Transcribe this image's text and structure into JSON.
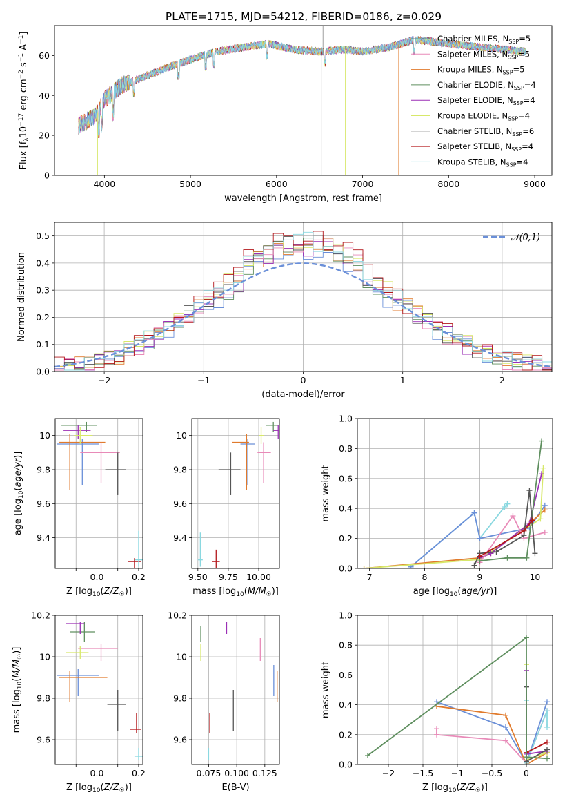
{
  "title": "PLATE=1715, MJD=54212, FIBERID=0186, z=0.029",
  "colors": [
    "#6a8fd8",
    "#e07a2c",
    "#5f8f5f",
    "#9b2fb5",
    "#e88ab8",
    "#d7e86a",
    "#555555",
    "#b3171b",
    "#8ad8e0"
  ],
  "chart_data": [
    {
      "id": "spectrum",
      "type": "line",
      "xlabel": "wavelength [Angstrom, rest frame]",
      "ylabel": "Flux [f_λ10^-17 erg cm^-2 s^-1 A^-1]",
      "xlim": [
        3420,
        9200
      ],
      "ylim": [
        0,
        75
      ],
      "xticks": [
        4000,
        5000,
        6000,
        7000,
        8000,
        9000
      ],
      "yticks": [
        0,
        20,
        40,
        60
      ],
      "grid": false,
      "legend_position": "right",
      "legend": [
        "Chabrier MILES, N_SSP=5",
        "Salpeter MILES, N_SSP=5",
        "Kroupa MILES, N_SSP=5",
        "Chabrier ELODIE, N_SSP=4",
        "Salpeter ELODIE, N_SSP=4",
        "Kroupa ELODIE, N_SSP=4",
        "Chabrier STELIB, N_SSP=6",
        "Salpeter STELIB, N_SSP=4",
        "Kroupa STELIB, N_SSP=4"
      ],
      "legend_colors": [
        "#5c9090",
        "#e88ab8",
        "#e07a2c",
        "#5f8f5f",
        "#9b2fb5",
        "#d7e86a",
        "#555555",
        "#b3171b",
        "#8ad8e0"
      ],
      "continuum": [
        [
          3700,
          25
        ],
        [
          3900,
          30
        ],
        [
          4000,
          38
        ],
        [
          4200,
          45
        ],
        [
          4500,
          50
        ],
        [
          4800,
          55
        ],
        [
          5000,
          58
        ],
        [
          5300,
          62
        ],
        [
          5600,
          64
        ],
        [
          5900,
          66
        ],
        [
          6200,
          63
        ],
        [
          6500,
          62
        ],
        [
          6800,
          63
        ],
        [
          7000,
          62
        ],
        [
          7300,
          64
        ],
        [
          7600,
          68
        ],
        [
          8000,
          66
        ],
        [
          8400,
          64
        ],
        [
          8900,
          62
        ]
      ],
      "dropouts": [
        {
          "x": 3920,
          "color": "#d7e86a"
        },
        {
          "x": 6800,
          "color": "#d7e86a"
        },
        {
          "x": 7420,
          "color": "#e07a2c"
        }
      ]
    },
    {
      "id": "residuals",
      "type": "histogram",
      "xlabel": "(data-model)/error",
      "ylabel": "Normed distribution",
      "xlim": [
        -2.5,
        2.5
      ],
      "ylim": [
        0,
        0.55
      ],
      "xticks": [
        -2,
        -1,
        0,
        1,
        2
      ],
      "yticks": [
        0.0,
        0.1,
        0.2,
        0.3,
        0.4,
        0.5
      ],
      "grid": true,
      "legend_position": "top-right",
      "legend": [
        "𝒩(0,1)"
      ],
      "bin_width": 0.1,
      "curve": {
        "mean": 0,
        "sigma": 1,
        "color": "#6a8fd8"
      }
    },
    {
      "id": "age_vs_Z",
      "type": "scatter",
      "xlabel": "Z [log10(Z/Z☉)]",
      "ylabel": "age [log10(age/yr)]",
      "xlim": [
        -0.2,
        0.22
      ],
      "ylim": [
        9.22,
        10.1
      ],
      "xticks": [
        -0.1,
        0.0,
        0.1,
        0.2
      ],
      "xticklabels": [
        "",
        "0.0",
        "",
        "0.2"
      ],
      "yticks": [
        9.4,
        9.6,
        9.8,
        10.0
      ],
      "grid": true,
      "points": [
        {
          "x": -0.07,
          "y": 9.95,
          "xerr": [
            0.12,
            0.08
          ],
          "yerr": [
            0.24,
            0.03
          ],
          "c": 0
        },
        {
          "x": -0.13,
          "y": 9.96,
          "xerr": [
            0.05,
            0.17
          ],
          "yerr": [
            0.28,
            0.05
          ],
          "c": 1
        },
        {
          "x": -0.05,
          "y": 10.06,
          "xerr": [
            0.12,
            0.05
          ],
          "yerr": [
            0.04,
            0.02
          ],
          "c": 2
        },
        {
          "x": -0.09,
          "y": 10.03,
          "xerr": [
            0.07,
            0.06
          ],
          "yerr": [
            0.05,
            0.03
          ],
          "c": 3
        },
        {
          "x": 0.02,
          "y": 9.9,
          "xerr": [
            0.1,
            0.09
          ],
          "yerr": [
            0.18,
            0.06
          ],
          "c": 4
        },
        {
          "x": -0.08,
          "y": 10.0,
          "xerr": [
            0.03,
            0.06
          ],
          "yerr": [
            0.05,
            0.05
          ],
          "c": 5
        },
        {
          "x": 0.1,
          "y": 9.8,
          "xerr": [
            0.06,
            0.04
          ],
          "yerr": [
            0.15,
            0.1
          ],
          "c": 6
        },
        {
          "x": 0.18,
          "y": 9.26,
          "xerr": [
            0.03,
            0.03
          ],
          "yerr": [
            0.04,
            0.02
          ],
          "c": 7
        },
        {
          "x": 0.2,
          "y": 9.27,
          "xerr": [
            0.02,
            0.02
          ],
          "yerr": [
            0.04,
            0.17
          ],
          "c": 8
        }
      ]
    },
    {
      "id": "age_vs_mass",
      "type": "scatter",
      "xlabel": "mass [log10(M/M☉)]",
      "ylabel": "",
      "xlim": [
        9.45,
        10.17
      ],
      "ylim": [
        9.22,
        10.1
      ],
      "xticks": [
        9.5,
        9.75,
        10.0
      ],
      "xticklabels": [
        "9.50",
        "9.75",
        "10.00"
      ],
      "yticks": [
        9.4,
        9.6,
        9.8,
        10.0
      ],
      "grid": true,
      "points": [
        {
          "x": 9.91,
          "y": 9.95,
          "xerr": [
            0.06,
            0.06
          ],
          "yerr": [
            0.24,
            0.03
          ],
          "c": 0
        },
        {
          "x": 9.9,
          "y": 9.96,
          "xerr": [
            0.12,
            0.02
          ],
          "yerr": [
            0.28,
            0.05
          ],
          "c": 1
        },
        {
          "x": 10.12,
          "y": 10.06,
          "xerr": [
            0.06,
            0.04
          ],
          "yerr": [
            0.04,
            0.02
          ],
          "c": 2
        },
        {
          "x": 10.16,
          "y": 10.03,
          "xerr": [
            0.04,
            0.04
          ],
          "yerr": [
            0.05,
            0.03
          ],
          "c": 3
        },
        {
          "x": 10.04,
          "y": 9.9,
          "xerr": [
            0.05,
            0.06
          ],
          "yerr": [
            0.18,
            0.06
          ],
          "c": 4
        },
        {
          "x": 10.02,
          "y": 10.0,
          "xerr": [
            0.02,
            0.02
          ],
          "yerr": [
            0.05,
            0.05
          ],
          "c": 5
        },
        {
          "x": 9.77,
          "y": 9.8,
          "xerr": [
            0.1,
            0.08
          ],
          "yerr": [
            0.15,
            0.1
          ],
          "c": 6
        },
        {
          "x": 9.65,
          "y": 9.26,
          "xerr": [
            0.03,
            0.03
          ],
          "yerr": [
            0.04,
            0.07
          ],
          "c": 7
        },
        {
          "x": 9.52,
          "y": 9.27,
          "xerr": [
            0.02,
            0.02
          ],
          "yerr": [
            0.04,
            0.16
          ],
          "c": 8
        }
      ]
    },
    {
      "id": "weight_vs_age",
      "type": "line",
      "xlabel": "age [log10(age/yr)]",
      "ylabel": "mass weight",
      "xlim": [
        6.78,
        10.32
      ],
      "ylim": [
        0,
        1.0
      ],
      "xticks": [
        7,
        8,
        9,
        10
      ],
      "yticks": [
        0.0,
        0.2,
        0.4,
        0.6,
        0.8,
        1.0
      ],
      "grid": true,
      "series": [
        {
          "c": 8,
          "x": [
            7.75,
            8.9,
            9.0,
            9.45,
            9.5
          ],
          "y": [
            0.01,
            0.37,
            0.2,
            0.41,
            0.43
          ]
        },
        {
          "c": 0,
          "x": [
            7.75,
            8.9,
            9.0,
            9.9,
            10.18
          ],
          "y": [
            0.01,
            0.37,
            0.2,
            0.27,
            0.42
          ]
        },
        {
          "c": 1,
          "x": [
            6.9,
            9.0,
            9.2,
            9.9,
            10.18
          ],
          "y": [
            0.0,
            0.07,
            0.1,
            0.3,
            0.39
          ]
        },
        {
          "c": 5,
          "x": [
            6.9,
            9.0,
            9.2,
            10.1,
            10.15
          ],
          "y": [
            0.0,
            0.06,
            0.11,
            0.33,
            0.67
          ]
        },
        {
          "c": 3,
          "x": [
            9.0,
            9.2,
            9.9,
            10.12
          ],
          "y": [
            0.07,
            0.1,
            0.3,
            0.63
          ]
        },
        {
          "c": 4,
          "x": [
            9.0,
            9.6,
            9.8,
            10.18
          ],
          "y": [
            0.04,
            0.35,
            0.2,
            0.24
          ]
        },
        {
          "c": 2,
          "x": [
            9.0,
            9.5,
            9.85,
            10.12
          ],
          "y": [
            0.05,
            0.07,
            0.07,
            0.85
          ]
        },
        {
          "c": 6,
          "x": [
            8.9,
            9.0,
            9.3,
            9.8,
            9.9,
            10.0
          ],
          "y": [
            0.02,
            0.1,
            0.11,
            0.22,
            0.52,
            0.1
          ]
        },
        {
          "c": 7,
          "x": [
            9.0,
            9.8,
            9.95
          ],
          "y": [
            0.08,
            0.25,
            0.32
          ]
        }
      ]
    },
    {
      "id": "mass_vs_Z",
      "type": "scatter",
      "xlabel": "Z [log10(Z/Z☉)]",
      "ylabel": "mass [log10(M/M☉)]",
      "xlim": [
        -0.2,
        0.22
      ],
      "ylim": [
        9.48,
        10.2
      ],
      "xticks": [
        -0.1,
        0.0,
        0.1,
        0.2
      ],
      "xticklabels": [
        "",
        "0.0",
        "",
        "0.2"
      ],
      "yticks": [
        9.6,
        9.8,
        10.0,
        10.2
      ],
      "grid": true,
      "points": [
        {
          "x": -0.09,
          "y": 9.91,
          "xerr": [
            0.1,
            0.1
          ],
          "yerr": [
            0.1,
            0.03
          ],
          "c": 0
        },
        {
          "x": -0.13,
          "y": 9.9,
          "xerr": [
            0.05,
            0.18
          ],
          "yerr": [
            0.12,
            0.03
          ],
          "c": 1
        },
        {
          "x": -0.06,
          "y": 10.12,
          "xerr": [
            0.07,
            0.05
          ],
          "yerr": [
            0.05,
            0.05
          ],
          "c": 2
        },
        {
          "x": -0.08,
          "y": 10.16,
          "xerr": [
            0.07,
            0.02
          ],
          "yerr": [
            0.05,
            0.01
          ],
          "c": 3
        },
        {
          "x": 0.02,
          "y": 10.04,
          "xerr": [
            0.11,
            0.08
          ],
          "yerr": [
            0.06,
            0.02
          ],
          "c": 4
        },
        {
          "x": -0.08,
          "y": 10.02,
          "xerr": [
            0.07,
            0.04
          ],
          "yerr": [
            0.03,
            0.03
          ],
          "c": 5
        },
        {
          "x": 0.1,
          "y": 9.77,
          "xerr": [
            0.05,
            0.04
          ],
          "yerr": [
            0.13,
            0.07
          ],
          "c": 6
        },
        {
          "x": 0.19,
          "y": 9.65,
          "xerr": [
            0.03,
            0.02
          ],
          "yerr": [
            0.02,
            0.08
          ],
          "c": 7
        },
        {
          "x": 0.2,
          "y": 9.52,
          "xerr": [
            0.02,
            0.02
          ],
          "yerr": [
            0.02,
            0.04
          ],
          "c": 8
        }
      ]
    },
    {
      "id": "mass_vs_ebv",
      "type": "scatter",
      "xlabel": "E(B-V)",
      "ylabel": "",
      "xlim": [
        0.06,
        0.138
      ],
      "ylim": [
        9.48,
        10.2
      ],
      "xticks": [
        0.075,
        0.1,
        0.125
      ],
      "xticklabels": [
        "0.075",
        "0.100",
        "0.125"
      ],
      "yticks": [
        9.6,
        9.8,
        10.0,
        10.2
      ],
      "grid": true,
      "points": [
        {
          "x": 0.133,
          "y": 9.91,
          "yerr": [
            0.1,
            0.05
          ],
          "c": 0
        },
        {
          "x": 0.136,
          "y": 9.9,
          "yerr": [
            0.12,
            0.03
          ],
          "c": 1
        },
        {
          "x": 0.068,
          "y": 10.12,
          "yerr": [
            0.05,
            0.03
          ],
          "c": 2
        },
        {
          "x": 0.091,
          "y": 10.16,
          "yerr": [
            0.05,
            0.01
          ],
          "c": 3
        },
        {
          "x": 0.121,
          "y": 10.04,
          "yerr": [
            0.06,
            0.05
          ],
          "c": 4
        },
        {
          "x": 0.068,
          "y": 10.02,
          "yerr": [
            0.04,
            0.04
          ],
          "c": 5
        },
        {
          "x": 0.097,
          "y": 9.77,
          "yerr": [
            0.13,
            0.07
          ],
          "c": 6
        },
        {
          "x": 0.076,
          "y": 9.65,
          "yerr": [
            0.02,
            0.08
          ],
          "c": 7
        },
        {
          "x": 0.075,
          "y": 9.52,
          "yerr": [
            0.02,
            0.04
          ],
          "c": 8
        }
      ]
    },
    {
      "id": "weight_vs_Z",
      "type": "line",
      "xlabel": "Z [log10(Z/Z☉)]",
      "ylabel": "mass weight",
      "xlim": [
        -2.45,
        0.38
      ],
      "ylim": [
        0,
        1.0
      ],
      "xticks": [
        -2.0,
        -1.5,
        -1.0,
        -0.5,
        0.0
      ],
      "yticks": [
        0.0,
        0.2,
        0.4,
        0.6,
        0.8,
        1.0
      ],
      "grid": true,
      "series": [
        {
          "c": 0,
          "x": [
            -1.3,
            -0.3,
            0.0,
            0.3
          ],
          "y": [
            0.42,
            0.25,
            0.01,
            0.42
          ]
        },
        {
          "c": 1,
          "x": [
            -1.3,
            -0.3,
            0.0,
            0.3
          ],
          "y": [
            0.39,
            0.33,
            0.0,
            0.08
          ]
        },
        {
          "c": 4,
          "x": [
            -1.3,
            -1.3,
            -0.3,
            0.0,
            0.3
          ],
          "y": [
            0.24,
            0.2,
            0.16,
            0.01,
            0.36
          ]
        },
        {
          "c": 8,
          "x": [
            0.0,
            0.0,
            0.3,
            0.3
          ],
          "y": [
            0.43,
            0.01,
            0.36,
            0.25
          ]
        },
        {
          "c": 5,
          "x": [
            0.0,
            0.0,
            0.3
          ],
          "y": [
            0.67,
            0.03,
            0.08
          ]
        },
        {
          "c": 3,
          "x": [
            0.0,
            0.0,
            0.3
          ],
          "y": [
            0.63,
            0.07,
            0.09
          ]
        },
        {
          "c": 6,
          "x": [
            0.0,
            0.0,
            0.3
          ],
          "y": [
            0.52,
            0.02,
            0.1
          ]
        },
        {
          "c": 7,
          "x": [
            0.0,
            0.3
          ],
          "y": [
            0.08,
            0.15
          ]
        },
        {
          "c": 2,
          "x": [
            -2.3,
            0.0,
            0.0,
            0.3
          ],
          "y": [
            0.06,
            0.85,
            0.05,
            0.04
          ]
        }
      ]
    }
  ]
}
